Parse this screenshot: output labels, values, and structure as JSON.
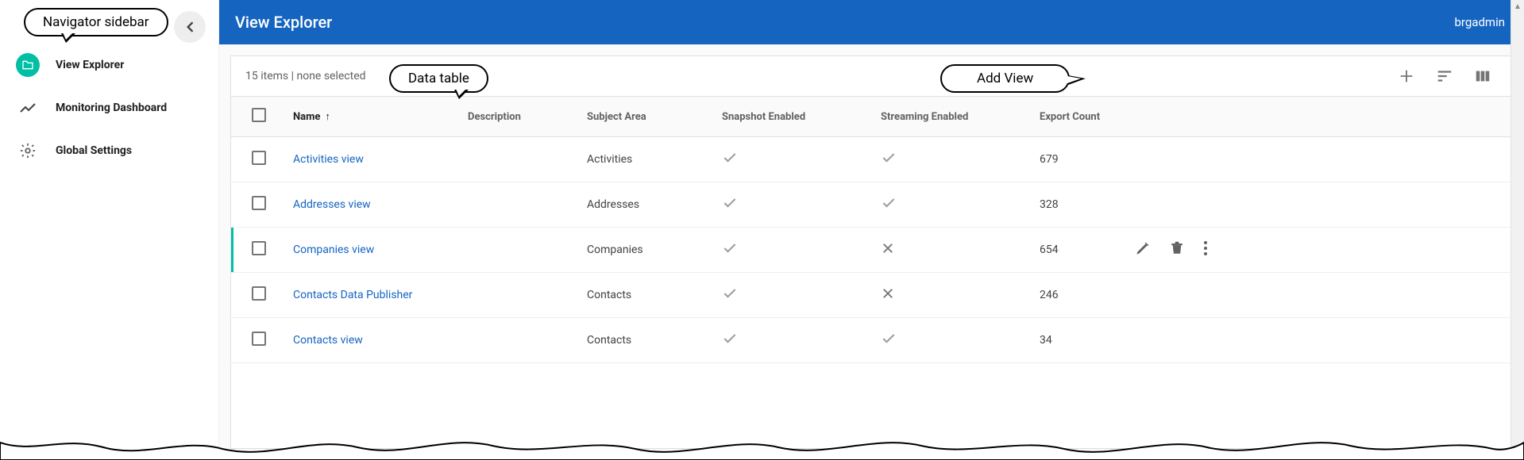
{
  "callouts": {
    "navigator": "Navigator sidebar",
    "data_table": "Data table",
    "add_view": "Add View"
  },
  "sidebar": {
    "items": [
      {
        "label": "View Explorer",
        "icon": "folder",
        "active": true
      },
      {
        "label": "Monitoring Dashboard",
        "icon": "trending",
        "active": false
      },
      {
        "label": "Global Settings",
        "icon": "gear",
        "active": false
      }
    ]
  },
  "header": {
    "title": "View Explorer",
    "user": "brgadmin",
    "accent_color": "#1565c0"
  },
  "toolbar": {
    "status": "15 items | none selected"
  },
  "table": {
    "columns": [
      "Name",
      "Description",
      "Subject Area",
      "Snapshot Enabled",
      "Streaming Enabled",
      "Export Count"
    ],
    "sort_column": "Name",
    "sort_dir": "asc",
    "rows": [
      {
        "name": "Activities view",
        "description": "",
        "subject": "Activities",
        "snapshot": true,
        "streaming": true,
        "export_count": "679",
        "highlighted": false,
        "show_actions": false
      },
      {
        "name": "Addresses view",
        "description": "",
        "subject": "Addresses",
        "snapshot": true,
        "streaming": true,
        "export_count": "328",
        "highlighted": false,
        "show_actions": false
      },
      {
        "name": "Companies view",
        "description": "",
        "subject": "Companies",
        "snapshot": true,
        "streaming": false,
        "export_count": "654",
        "highlighted": true,
        "show_actions": true
      },
      {
        "name": "Contacts Data Publisher",
        "description": "",
        "subject": "Contacts",
        "snapshot": true,
        "streaming": false,
        "export_count": "246",
        "highlighted": false,
        "show_actions": false
      },
      {
        "name": "Contacts view",
        "description": "",
        "subject": "Contacts",
        "snapshot": true,
        "streaming": true,
        "export_count": "34",
        "highlighted": false,
        "show_actions": false
      }
    ]
  },
  "colors": {
    "link": "#1565c0",
    "icon": "#757575",
    "teal": "#00bfa5",
    "border": "#e0e0e0"
  }
}
